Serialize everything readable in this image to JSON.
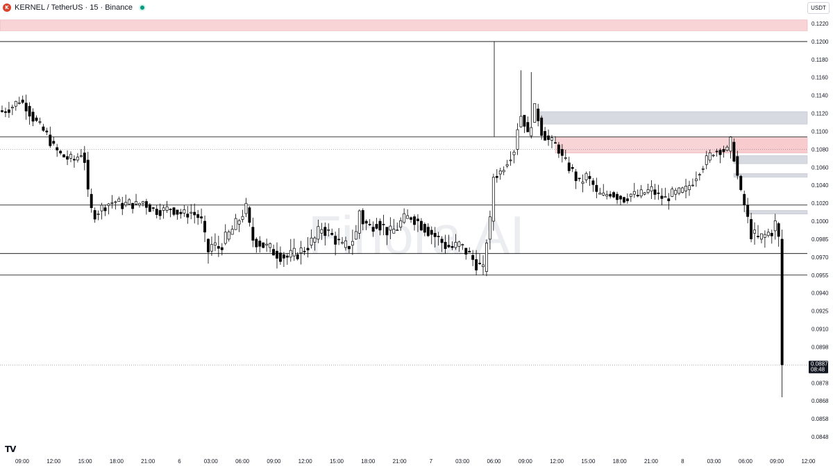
{
  "header": {
    "symbol_icon": "kernel-logo-icon",
    "title": "KERNEL / TetherUS · 15 · Binance",
    "status_color": "#089981"
  },
  "currency_button": "USDT",
  "watermark": "Finora AI",
  "colors": {
    "candle": "#000000",
    "supply_zone": "#f7c5c8",
    "neutral_zone": "#d1d4dc",
    "level_line": "#000000",
    "price_label_bg": "#131722"
  },
  "chart_data": {
    "type": "candlestick",
    "interval": "15",
    "y_axis": {
      "ticks": [
        "0.1220",
        "0.1200",
        "0.1180",
        "0.1160",
        "0.1140",
        "0.1120",
        "0.1100",
        "0.1080",
        "0.1060",
        "0.1040",
        "0.1020",
        "0.1000",
        "0.0985",
        "0.0970",
        "0.0955",
        "0.0940",
        "0.0925",
        "0.0910",
        "0.0898",
        "0.0887",
        "0.0878",
        "0.0868",
        "0.0858",
        "0.0848"
      ],
      "scale": "log"
    },
    "x_axis": {
      "ticks": [
        "09:00",
        "12:00",
        "15:00",
        "18:00",
        "21:00",
        "6",
        "03:00",
        "06:00",
        "09:00",
        "12:00",
        "15:00",
        "18:00",
        "21:00",
        "7",
        "03:00",
        "06:00",
        "09:00",
        "12:00",
        "15:00",
        "18:00",
        "21:00",
        "8",
        "03:00",
        "06:00",
        "09:00",
        "12:00"
      ]
    },
    "current_price": {
      "value": "0.0887",
      "countdown": "08:48"
    },
    "horizontal_levels": [
      0.12,
      0.1094,
      0.1018,
      0.0973,
      0.0955
    ],
    "dotted_levels": [
      0.108,
      0.0887
    ],
    "zones": [
      {
        "kind": "supply",
        "low": 0.1212,
        "high": 0.1224,
        "from_time": "09:00"
      },
      {
        "kind": "neutral",
        "low": 0.1108,
        "high": 0.1122,
        "from_time": "12:00"
      },
      {
        "kind": "supply",
        "low": 0.1076,
        "high": 0.1093,
        "from_time": "12:00"
      },
      {
        "kind": "neutral",
        "low": 0.1064,
        "high": 0.1073,
        "from_time": "06:00"
      },
      {
        "kind": "neutral",
        "low": 0.1049,
        "high": 0.1053,
        "from_time": "06:00"
      },
      {
        "kind": "neutral",
        "low": 0.1008,
        "high": 0.1012,
        "from_time": "06:00"
      }
    ],
    "price_path": [
      [
        0,
        0.1122
      ],
      [
        3,
        0.1128
      ],
      [
        5,
        0.1135
      ],
      [
        7,
        0.1128
      ],
      [
        9,
        0.1115
      ],
      [
        11,
        0.1105
      ],
      [
        13,
        0.1096
      ],
      [
        15,
        0.1082
      ],
      [
        17,
        0.1074
      ],
      [
        19,
        0.107
      ],
      [
        21,
        0.1068
      ],
      [
        23,
        0.1076
      ],
      [
        24,
        0.1068
      ],
      [
        25,
        0.103
      ],
      [
        26,
        0.1012
      ],
      [
        27,
        0.1008
      ],
      [
        29,
        0.1015
      ],
      [
        31,
        0.102
      ],
      [
        33,
        0.1022
      ],
      [
        35,
        0.1018
      ],
      [
        37,
        0.102
      ],
      [
        39,
        0.1018
      ],
      [
        41,
        0.1022
      ],
      [
        43,
        0.1015
      ],
      [
        45,
        0.1012
      ],
      [
        47,
        0.1012
      ],
      [
        49,
        0.1015
      ],
      [
        51,
        0.101
      ],
      [
        53,
        0.1008
      ],
      [
        55,
        0.101
      ],
      [
        57,
        0.1005
      ],
      [
        58,
        0.1
      ],
      [
        59,
        0.0985
      ],
      [
        60,
        0.0975
      ],
      [
        61,
        0.098
      ],
      [
        63,
        0.0978
      ],
      [
        65,
        0.0985
      ],
      [
        67,
        0.0993
      ],
      [
        69,
        0.1002
      ],
      [
        71,
        0.1015
      ],
      [
        72,
        0.0995
      ],
      [
        73,
        0.0985
      ],
      [
        75,
        0.0982
      ],
      [
        77,
        0.0978
      ],
      [
        79,
        0.0975
      ],
      [
        81,
        0.0972
      ],
      [
        83,
        0.097
      ],
      [
        85,
        0.0972
      ],
      [
        87,
        0.0975
      ],
      [
        89,
        0.098
      ],
      [
        91,
        0.0985
      ],
      [
        93,
        0.0995
      ],
      [
        95,
        0.099
      ],
      [
        97,
        0.0985
      ],
      [
        99,
        0.0978
      ],
      [
        101,
        0.098
      ],
      [
        103,
        0.099
      ],
      [
        104,
        0.1012
      ],
      [
        105,
        0.1
      ],
      [
        107,
        0.0995
      ],
      [
        109,
        0.1
      ],
      [
        111,
        0.0995
      ],
      [
        113,
        0.099
      ],
      [
        115,
        0.0995
      ],
      [
        117,
        0.1003
      ],
      [
        119,
        0.1005
      ],
      [
        121,
        0.1
      ],
      [
        123,
        0.0995
      ],
      [
        125,
        0.099
      ],
      [
        127,
        0.0985
      ],
      [
        129,
        0.098
      ],
      [
        131,
        0.0978
      ],
      [
        133,
        0.098
      ],
      [
        135,
        0.0975
      ],
      [
        137,
        0.0968
      ],
      [
        139,
        0.0962
      ],
      [
        140,
        0.0958
      ],
      [
        141,
        0.0985
      ],
      [
        142,
        0.1
      ],
      [
        143,
        0.105
      ],
      [
        145,
        0.1055
      ],
      [
        147,
        0.1068
      ],
      [
        149,
        0.108
      ],
      [
        150,
        0.1105
      ],
      [
        151,
        0.1118
      ],
      [
        152,
        0.111
      ],
      [
        153,
        0.1095
      ],
      [
        154,
        0.111
      ],
      [
        155,
        0.1125
      ],
      [
        156,
        0.1115
      ],
      [
        157,
        0.11
      ],
      [
        159,
        0.109
      ],
      [
        161,
        0.1085
      ],
      [
        162,
        0.108
      ],
      [
        163,
        0.107
      ],
      [
        165,
        0.106
      ],
      [
        166,
        0.1055
      ],
      [
        167,
        0.1048
      ],
      [
        168,
        0.1042
      ],
      [
        170,
        0.105
      ],
      [
        172,
        0.104
      ],
      [
        173,
        0.103
      ],
      [
        175,
        0.1028
      ],
      [
        177,
        0.1032
      ],
      [
        179,
        0.1028
      ],
      [
        181,
        0.1025
      ],
      [
        183,
        0.103
      ],
      [
        185,
        0.1028
      ],
      [
        187,
        0.1032
      ],
      [
        189,
        0.1035
      ],
      [
        191,
        0.1028
      ],
      [
        193,
        0.1025
      ],
      [
        195,
        0.103
      ],
      [
        197,
        0.1032
      ],
      [
        199,
        0.1035
      ],
      [
        201,
        0.1045
      ],
      [
        203,
        0.1058
      ],
      [
        205,
        0.1068
      ],
      [
        207,
        0.1078
      ],
      [
        209,
        0.108
      ],
      [
        211,
        0.1078
      ],
      [
        212,
        0.1088
      ],
      [
        213,
        0.1072
      ],
      [
        214,
        0.105
      ],
      [
        215,
        0.103
      ],
      [
        216,
        0.1018
      ],
      [
        217,
        0.1002
      ],
      [
        218,
        0.099
      ],
      [
        220,
        0.0985
      ],
      [
        222,
        0.0988
      ],
      [
        224,
        0.0992
      ],
      [
        225,
        0.0998
      ],
      [
        226,
        0.0985
      ],
      [
        227,
        0.0887
      ]
    ]
  }
}
